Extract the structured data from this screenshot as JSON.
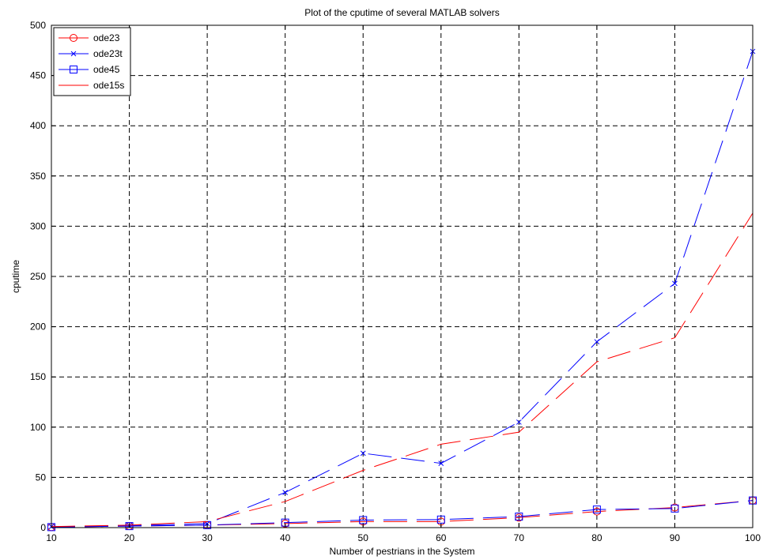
{
  "chart_data": {
    "type": "line",
    "title": "Plot of the cputime of several MATLAB solvers",
    "xlabel": "Number of pestrians in the System",
    "ylabel": "cputime",
    "xlim": [
      10,
      100
    ],
    "ylim": [
      0,
      500
    ],
    "x_ticks": [
      "10",
      "20",
      "30",
      "40",
      "50",
      "60",
      "70",
      "80",
      "90",
      "100"
    ],
    "y_ticks": [
      "0",
      "50",
      "100",
      "150",
      "200",
      "250",
      "300",
      "350",
      "400",
      "450",
      "500"
    ],
    "grid": true,
    "legend_position": "top-left",
    "x": [
      10,
      20,
      30,
      40,
      50,
      60,
      70,
      80,
      90,
      100
    ],
    "series": [
      {
        "name": "ode23",
        "color": "#ff0000",
        "marker": "circle",
        "dash": "dashed",
        "values": [
          0.5,
          1.5,
          2.5,
          4,
          6,
          6,
          10,
          16,
          20,
          27
        ]
      },
      {
        "name": "ode23t",
        "color": "#0000ff",
        "marker": "x",
        "dash": "dashed",
        "values": [
          1,
          2,
          4,
          35,
          74,
          64,
          105,
          185,
          243,
          474
        ]
      },
      {
        "name": "ode45",
        "color": "#0000ff",
        "marker": "square",
        "dash": "dashed",
        "values": [
          0.5,
          1.5,
          2.5,
          5,
          7.5,
          8,
          11,
          18,
          19,
          27
        ]
      },
      {
        "name": "ode15s",
        "color": "#ff0000",
        "marker": "none",
        "dash": "dashed",
        "values": [
          1,
          2.5,
          6,
          26,
          57,
          83,
          95,
          165,
          189,
          313
        ]
      }
    ]
  }
}
